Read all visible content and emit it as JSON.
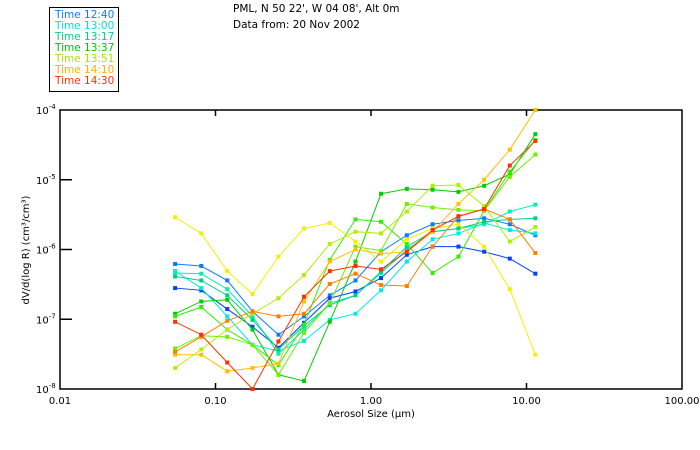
{
  "header": {
    "location": "PML, N 50 22', W 04 08', Alt 0m",
    "date": "Data from: 20 Nov 2002"
  },
  "legend": [
    {
      "label": "Time 12:40",
      "color": "#0a7cff"
    },
    {
      "label": "Time 13:00",
      "color": "#00e0e0"
    },
    {
      "label": "Time 13:17",
      "color": "#00d080"
    },
    {
      "label": "Time 13:37",
      "color": "#00c800"
    },
    {
      "label": "Time 13:51",
      "color": "#a8e000"
    },
    {
      "label": "Time 14:10",
      "color": "#ffb000"
    },
    {
      "label": "Time 14:30",
      "color": "#ff3000"
    }
  ],
  "chart_data": {
    "type": "line",
    "title": "",
    "xlabel": "Aerosol Size (µm)",
    "ylabel": "dV/d(log R) (cm³/cm³)",
    "xscale": "log",
    "yscale": "log",
    "xlim": [
      0.01,
      100
    ],
    "ylim": [
      1e-08,
      0.0001
    ],
    "x_ticks": [
      "0.01",
      "0.10",
      "1.00",
      "10.00",
      "100.00"
    ],
    "y_ticks": [
      {
        "base": "10",
        "exp": "-4"
      },
      {
        "base": "10",
        "exp": "-5"
      },
      {
        "base": "10",
        "exp": "-6"
      },
      {
        "base": "10",
        "exp": "-7"
      },
      {
        "base": "10",
        "exp": "-8"
      }
    ],
    "legend_position": "top-left, outside plot",
    "x": [
      0.055,
      0.081,
      0.119,
      0.173,
      0.254,
      0.371,
      0.543,
      0.795,
      1.16,
      1.7,
      2.49,
      3.65,
      5.34,
      7.81,
      11.4
    ],
    "series": [
      {
        "name": "Time 12:40",
        "color": "#0a7cff",
        "values": [
          6.2e-07,
          5.8e-07,
          3.6e-07,
          1.3e-07,
          6e-08,
          1.1e-07,
          2.2e-07,
          3.6e-07,
          9.3e-07,
          1.6e-06,
          2.3e-06,
          2.6e-06,
          2.8e-06,
          2.3e-06,
          1.6e-06
        ]
      },
      {
        "name": null,
        "color": "#0040ff",
        "values": [
          2.8e-07,
          2.6e-07,
          1.4e-07,
          7.8e-08,
          3.9e-08,
          8.9e-08,
          2e-07,
          2.5e-07,
          3.9e-07,
          8.4e-07,
          1.1e-06,
          1.1e-06,
          9.3e-07,
          7.4e-07,
          4.5e-07
        ]
      },
      {
        "name": "Time 13:00",
        "color": "#00e8e8",
        "values": [
          4.9e-07,
          2.8e-07,
          1.1e-07,
          4.3e-08,
          3.5e-08,
          4.9e-08,
          9.8e-08,
          1.2e-07,
          2.6e-07,
          6.7e-07,
          1.4e-06,
          1.7e-06,
          2.4e-06,
          1.9e-06,
          1.7e-06
        ]
      },
      {
        "name": null,
        "color": "#00f0b0",
        "values": [
          4.6e-07,
          4.5e-07,
          2.7e-07,
          1.1e-07,
          3.2e-08,
          7.1e-08,
          1.7e-07,
          2.2e-07,
          4.6e-07,
          9.9e-07,
          1.8e-06,
          2e-06,
          2.3e-06,
          3.5e-06,
          4.4e-06
        ]
      },
      {
        "name": "Time 13:17",
        "color": "#00d080",
        "values": [
          4.1e-07,
          3.6e-07,
          2.2e-07,
          9.8e-08,
          3.7e-08,
          8.1e-08,
          1.6e-07,
          2.2e-07,
          4.8e-07,
          1.1e-06,
          1.8e-06,
          2e-06,
          2.5e-06,
          2.7e-06,
          2.8e-06
        ]
      },
      {
        "name": "Time 13:37",
        "color": "#00d000",
        "values": [
          1.2e-07,
          1.8e-07,
          1.9e-07,
          7.1e-08,
          1.6e-08,
          1.3e-08,
          9.2e-08,
          6.7e-07,
          6.3e-06,
          7.4e-06,
          7.2e-06,
          6.7e-06,
          8.2e-06,
          1.2e-05,
          4.5e-05
        ]
      },
      {
        "name": null,
        "color": "#30f000",
        "values": [
          1.1e-07,
          1.5e-07,
          7.1e-08,
          4.3e-08,
          2.2e-08,
          8.4e-08,
          7.1e-07,
          2.7e-06,
          2.5e-06,
          1.2e-06,
          4.6e-07,
          7.9e-07,
          3.6e-06,
          1.3e-05,
          3.7e-05
        ]
      },
      {
        "name": null,
        "color": "#70f000",
        "values": [
          3.8e-08,
          5.8e-08,
          5.6e-08,
          4.3e-08,
          1.6e-08,
          6.4e-08,
          1.7e-07,
          1.1e-06,
          9.6e-07,
          4.5e-06,
          4e-06,
          3.7e-06,
          3.6e-06,
          1.1e-05,
          2.3e-05
        ]
      },
      {
        "name": "Time 13:51",
        "color": "#b0f000",
        "values": [
          2e-08,
          3.7e-08,
          7.1e-08,
          1.2e-07,
          2e-07,
          4.3e-07,
          1.2e-06,
          1.8e-06,
          1.7e-06,
          3.5e-06,
          8.2e-06,
          8.4e-06,
          4.2e-06,
          1.3e-06,
          2.1e-06
        ]
      },
      {
        "name": null,
        "color": "#f0f000",
        "values": [
          2.9e-06,
          1.7e-06,
          4.9e-07,
          2.3e-07,
          7.9e-07,
          2e-06,
          2.4e-06,
          1.3e-06,
          6.7e-07,
          1.4e-06,
          2e-06,
          2.3e-06,
          1.1e-06,
          2.7e-07,
          3.1e-08
        ]
      },
      {
        "name": "Time 14:10",
        "color": "#ffc000",
        "values": [
          3.1e-08,
          3.1e-08,
          1.8e-08,
          2e-08,
          2.3e-08,
          1.8e-07,
          6.7e-07,
          1e-06,
          8.7e-07,
          9.3e-07,
          1.8e-06,
          4.5e-06,
          1e-05,
          2.7e-05,
          0.0001
        ]
      },
      {
        "name": null,
        "color": "#ff8000",
        "values": [
          3.4e-08,
          5.6e-08,
          9.5e-08,
          1.3e-07,
          1.1e-07,
          1.2e-07,
          3.2e-07,
          4.5e-07,
          3.1e-07,
          3e-07,
          1.1e-06,
          3e-06,
          3.8e-06,
          2.7e-06,
          8.9e-07
        ]
      },
      {
        "name": "Time 14:30",
        "color": "#ff3000",
        "values": [
          9.2e-08,
          6e-08,
          2.4e-08,
          1e-08,
          4.8e-08,
          2.1e-07,
          4.9e-07,
          5.8e-07,
          5.2e-07,
          9.3e-07,
          1.9e-06,
          3e-06,
          3.8e-06,
          1.6e-05,
          3.6e-05
        ]
      }
    ]
  }
}
